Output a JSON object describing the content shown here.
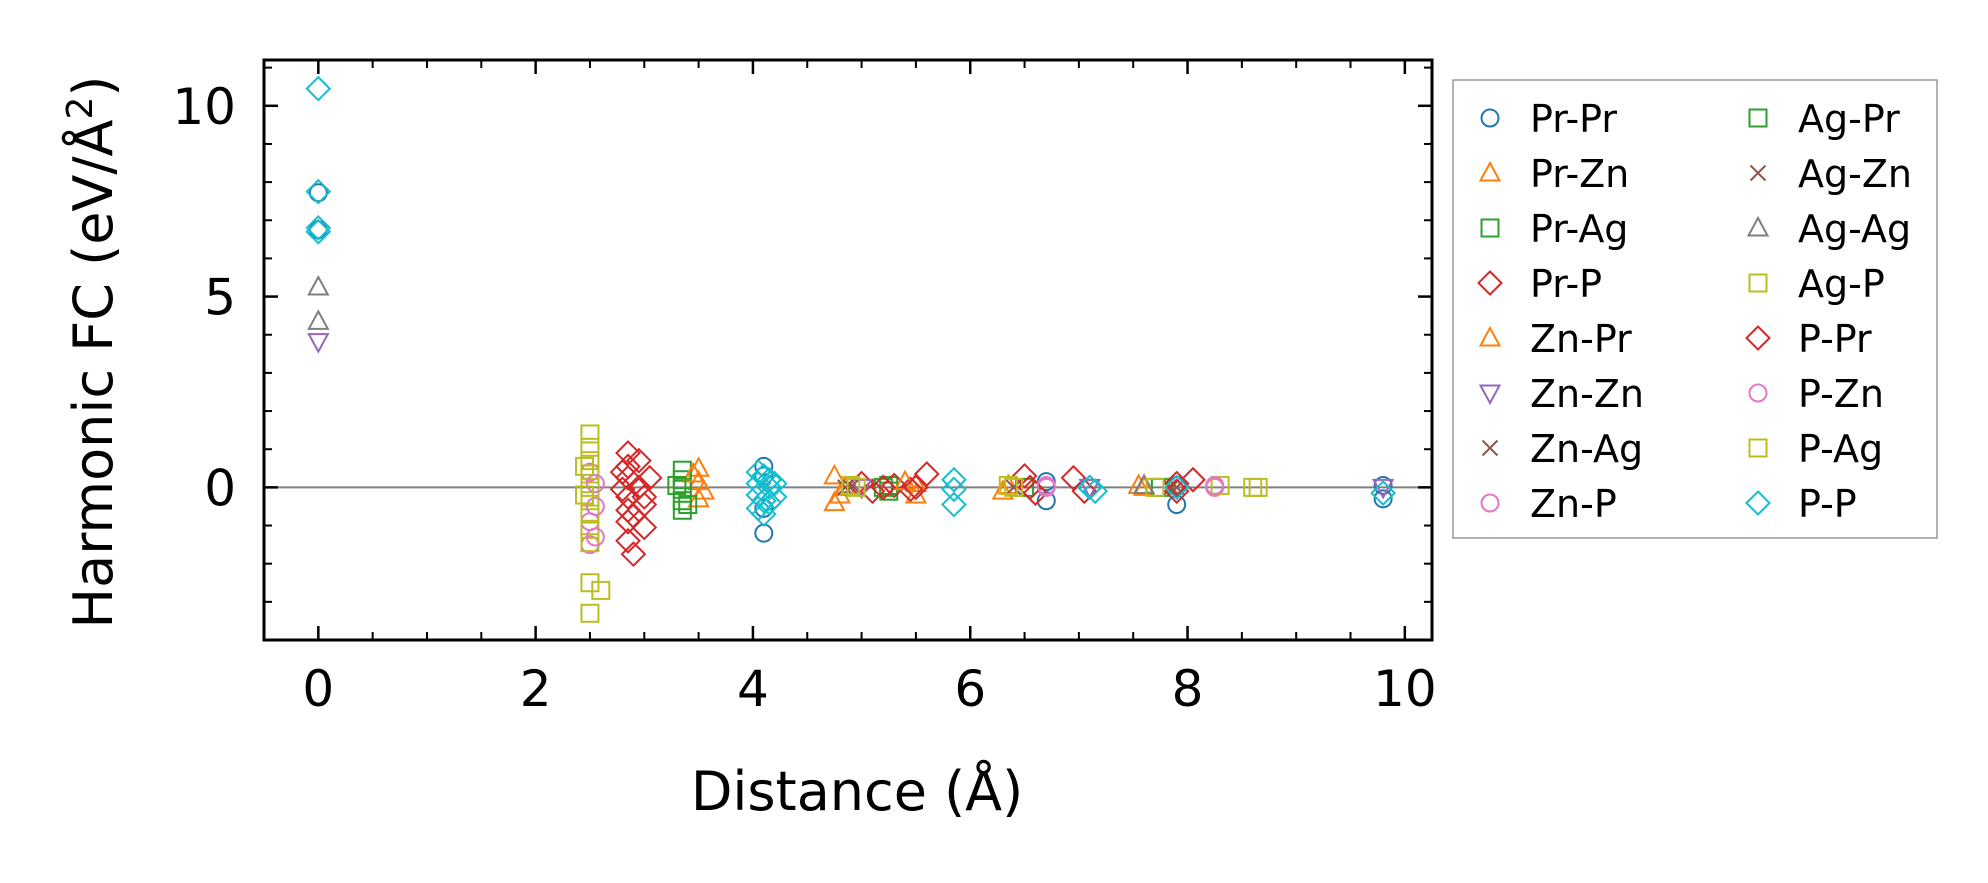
{
  "chart_data": {
    "type": "scatter",
    "title": "",
    "xlabel": "Distance (Å)",
    "ylabel_main": "Harmonic FC (eV/Å",
    "ylabel_sup": "2",
    "ylabel_close": ")",
    "xlim": [
      -0.5,
      10.25
    ],
    "ylim": [
      -4.0,
      11.2
    ],
    "xticks": [
      0,
      2,
      4,
      6,
      8,
      10
    ],
    "xtick_labels": [
      "0",
      "2",
      "4",
      "6",
      "8",
      "10"
    ],
    "yticks": [
      0,
      5,
      10
    ],
    "ytick_labels": [
      "0",
      "5",
      "10"
    ],
    "xminor": [
      -0.5,
      0.5,
      1.0,
      1.5,
      2.5,
      3.0,
      3.5,
      4.5,
      5.0,
      5.5,
      6.5,
      7.0,
      7.5,
      8.5,
      9.0,
      9.5
    ],
    "yminor": [
      -3,
      -2,
      -1,
      1,
      2,
      3,
      4,
      6,
      7,
      8,
      9,
      11
    ],
    "zero_line": 0,
    "legend_position": "outside-right",
    "series": [
      {
        "name": "Pr-Pr",
        "marker": "circle",
        "color": "#1f77b4",
        "points": [
          [
            0,
            7.72
          ],
          [
            0,
            6.75
          ],
          [
            4.1,
            0.55
          ],
          [
            4.1,
            0.3
          ],
          [
            4.1,
            -1.2
          ],
          [
            4.1,
            -0.55
          ],
          [
            6.7,
            0.15
          ],
          [
            6.7,
            -0.35
          ],
          [
            7.9,
            -0.45
          ],
          [
            7.9,
            0.05
          ],
          [
            9.8,
            0.05
          ],
          [
            9.8,
            -0.3
          ]
        ]
      },
      {
        "name": "Pr-Zn",
        "marker": "triangle-up",
        "color": "#ff7f0e",
        "points": [
          [
            3.5,
            0.5
          ],
          [
            3.5,
            0.15
          ],
          [
            3.5,
            -0.3
          ],
          [
            4.75,
            0.3
          ],
          [
            4.75,
            -0.4
          ],
          [
            4.85,
            0.0
          ],
          [
            5.5,
            0.1
          ],
          [
            5.5,
            -0.2
          ],
          [
            6.35,
            0.05
          ],
          [
            7.6,
            0.0
          ]
        ]
      },
      {
        "name": "Pr-Ag",
        "marker": "square",
        "color": "#2ca02c",
        "points": [
          [
            3.35,
            0.45
          ],
          [
            3.35,
            0.2
          ],
          [
            3.35,
            -0.05
          ],
          [
            3.35,
            -0.35
          ],
          [
            3.35,
            -0.6
          ],
          [
            5.25,
            0.05
          ],
          [
            5.25,
            -0.1
          ],
          [
            6.5,
            0.0
          ],
          [
            7.75,
            0.0
          ]
        ]
      },
      {
        "name": "Pr-P",
        "marker": "diamond",
        "color": "#d62728",
        "points": [
          [
            2.85,
            0.9
          ],
          [
            2.85,
            0.55
          ],
          [
            2.85,
            0.25
          ],
          [
            2.85,
            -0.25
          ],
          [
            2.85,
            -0.6
          ],
          [
            2.85,
            -0.9
          ],
          [
            2.85,
            -1.4
          ],
          [
            2.9,
            -1.75
          ],
          [
            2.95,
            0.7
          ],
          [
            2.95,
            0.0
          ],
          [
            3.0,
            -0.45
          ],
          [
            3.0,
            -1.05
          ],
          [
            5.0,
            0.1
          ],
          [
            5.1,
            -0.1
          ],
          [
            5.3,
            0.05
          ],
          [
            5.45,
            -0.05
          ],
          [
            5.6,
            0.35
          ],
          [
            6.5,
            0.3
          ],
          [
            6.6,
            -0.15
          ],
          [
            6.95,
            0.25
          ],
          [
            7.05,
            -0.1
          ],
          [
            7.9,
            0.1
          ],
          [
            8.05,
            0.2
          ]
        ]
      },
      {
        "name": "Zn-Pr",
        "marker": "triangle-up",
        "color": "#ff7f0e",
        "points": [
          [
            3.45,
            0.35
          ],
          [
            3.55,
            -0.1
          ],
          [
            4.8,
            -0.2
          ],
          [
            5.4,
            0.15
          ],
          [
            6.3,
            -0.1
          ],
          [
            7.55,
            0.05
          ]
        ]
      },
      {
        "name": "Zn-Zn",
        "marker": "triangle-down",
        "color": "#9467bd",
        "points": [
          [
            0,
            3.82
          ],
          [
            5.0,
            0.0
          ],
          [
            7.1,
            0.0
          ],
          [
            9.8,
            0.0
          ]
        ]
      },
      {
        "name": "Zn-Ag",
        "marker": "x",
        "color": "#8c564b",
        "points": [
          [
            4.9,
            0.0
          ],
          [
            6.4,
            0.0
          ],
          [
            7.9,
            0.0
          ]
        ]
      },
      {
        "name": "Zn-P",
        "marker": "circle",
        "color": "#e377c2",
        "points": [
          [
            2.5,
            0.4
          ],
          [
            2.5,
            -1.5
          ],
          [
            2.5,
            -0.9
          ],
          [
            6.7,
            0.0
          ],
          [
            8.25,
            0.0
          ]
        ]
      },
      {
        "name": "Ag-Pr",
        "marker": "square",
        "color": "#2ca02c",
        "points": [
          [
            3.3,
            0.05
          ],
          [
            3.4,
            -0.45
          ],
          [
            5.2,
            0.0
          ]
        ]
      },
      {
        "name": "Ag-Zn",
        "marker": "x",
        "color": "#8c564b",
        "points": [
          [
            4.85,
            0.0
          ],
          [
            7.85,
            0.0
          ]
        ]
      },
      {
        "name": "Ag-Ag",
        "marker": "triangle-up",
        "color": "#7f7f7f",
        "points": [
          [
            0,
            5.25
          ],
          [
            0,
            4.35
          ],
          [
            7.6,
            0.05
          ]
        ]
      },
      {
        "name": "Ag-P",
        "marker": "square",
        "color": "#bcbd22",
        "points": [
          [
            2.5,
            1.4
          ],
          [
            2.5,
            1.05
          ],
          [
            2.5,
            0.7
          ],
          [
            2.5,
            0.35
          ],
          [
            2.5,
            0.0
          ],
          [
            2.5,
            -0.35
          ],
          [
            2.5,
            -0.7
          ],
          [
            2.5,
            -1.1
          ],
          [
            2.5,
            -1.45
          ],
          [
            2.5,
            -2.5
          ],
          [
            2.6,
            -2.7
          ],
          [
            2.5,
            -3.3
          ],
          [
            4.95,
            0.0
          ],
          [
            6.35,
            0.05
          ],
          [
            7.7,
            0.0
          ],
          [
            8.3,
            0.05
          ],
          [
            8.65,
            0.0
          ]
        ]
      },
      {
        "name": "P-Pr",
        "marker": "diamond",
        "color": "#d62728",
        "points": [
          [
            2.8,
            0.4
          ],
          [
            2.8,
            -0.05
          ],
          [
            2.9,
            -0.75
          ],
          [
            3.05,
            0.25
          ],
          [
            3.0,
            -0.25
          ],
          [
            5.2,
            0.0
          ],
          [
            5.5,
            0.0
          ],
          [
            6.55,
            0.0
          ],
          [
            7.9,
            -0.1
          ]
        ]
      },
      {
        "name": "P-Zn",
        "marker": "circle",
        "color": "#e377c2",
        "points": [
          [
            2.55,
            0.1
          ],
          [
            2.55,
            -0.5
          ],
          [
            2.55,
            -1.3
          ],
          [
            6.7,
            0.05
          ],
          [
            8.25,
            0.05
          ]
        ]
      },
      {
        "name": "P-Ag",
        "marker": "square",
        "color": "#bcbd22",
        "points": [
          [
            2.45,
            -0.2
          ],
          [
            2.45,
            0.55
          ],
          [
            4.9,
            0.05
          ],
          [
            6.4,
            0.0
          ],
          [
            8.6,
            0.0
          ]
        ]
      },
      {
        "name": "P-P",
        "marker": "diamond",
        "color": "#17becf",
        "points": [
          [
            0,
            10.45
          ],
          [
            0,
            7.75
          ],
          [
            0,
            6.8
          ],
          [
            0,
            6.7
          ],
          [
            4.05,
            0.4
          ],
          [
            4.05,
            0.1
          ],
          [
            4.05,
            -0.2
          ],
          [
            4.05,
            -0.55
          ],
          [
            4.1,
            0.3
          ],
          [
            4.1,
            -0.35
          ],
          [
            4.1,
            -0.7
          ],
          [
            4.15,
            0.2
          ],
          [
            4.15,
            0.0
          ],
          [
            4.15,
            -0.4
          ],
          [
            4.2,
            0.1
          ],
          [
            4.2,
            -0.25
          ],
          [
            5.85,
            0.2
          ],
          [
            5.85,
            -0.05
          ],
          [
            5.85,
            -0.45
          ],
          [
            7.1,
            0.0
          ],
          [
            7.15,
            -0.1
          ],
          [
            7.9,
            0.0
          ],
          [
            9.8,
            -0.15
          ]
        ]
      }
    ]
  }
}
